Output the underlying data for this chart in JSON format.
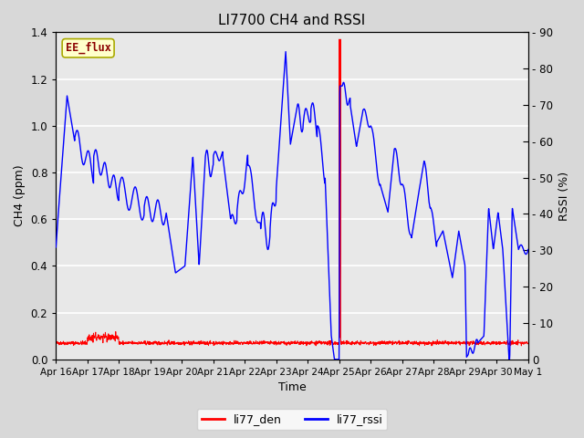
{
  "title": "LI7700 CH4 and RSSI",
  "xlabel": "Time",
  "ylabel_left": "CH4 (ppm)",
  "ylabel_right": "RSSI (%)",
  "ch4_ylim": [
    0.0,
    1.4
  ],
  "rssi_ylim": [
    0,
    90
  ],
  "ch4_yticks": [
    0.0,
    0.2,
    0.4,
    0.6,
    0.8,
    1.0,
    1.2,
    1.4
  ],
  "rssi_yticks": [
    0,
    10,
    20,
    30,
    40,
    50,
    60,
    70,
    80,
    90
  ],
  "background_color": "#d8d8d8",
  "plot_bg_color": "#e8e8e8",
  "annotation_box": {
    "text": "EE_flux",
    "color": "#8b0000",
    "bg": "#ffffcc",
    "edge": "#aaaa00"
  },
  "legend_entries": [
    "li77_den",
    "li77_rssi"
  ],
  "x_tick_labels": [
    "Apr 16",
    "Apr 17",
    "Apr 18",
    "Apr 19",
    "Apr 20",
    "Apr 21",
    "Apr 22",
    "Apr 23",
    "Apr 24",
    "Apr 25",
    "Apr 26",
    "Apr 27",
    "Apr 28",
    "Apr 29",
    "Apr 30",
    "May 1"
  ],
  "date_start": 0,
  "date_end": 15
}
